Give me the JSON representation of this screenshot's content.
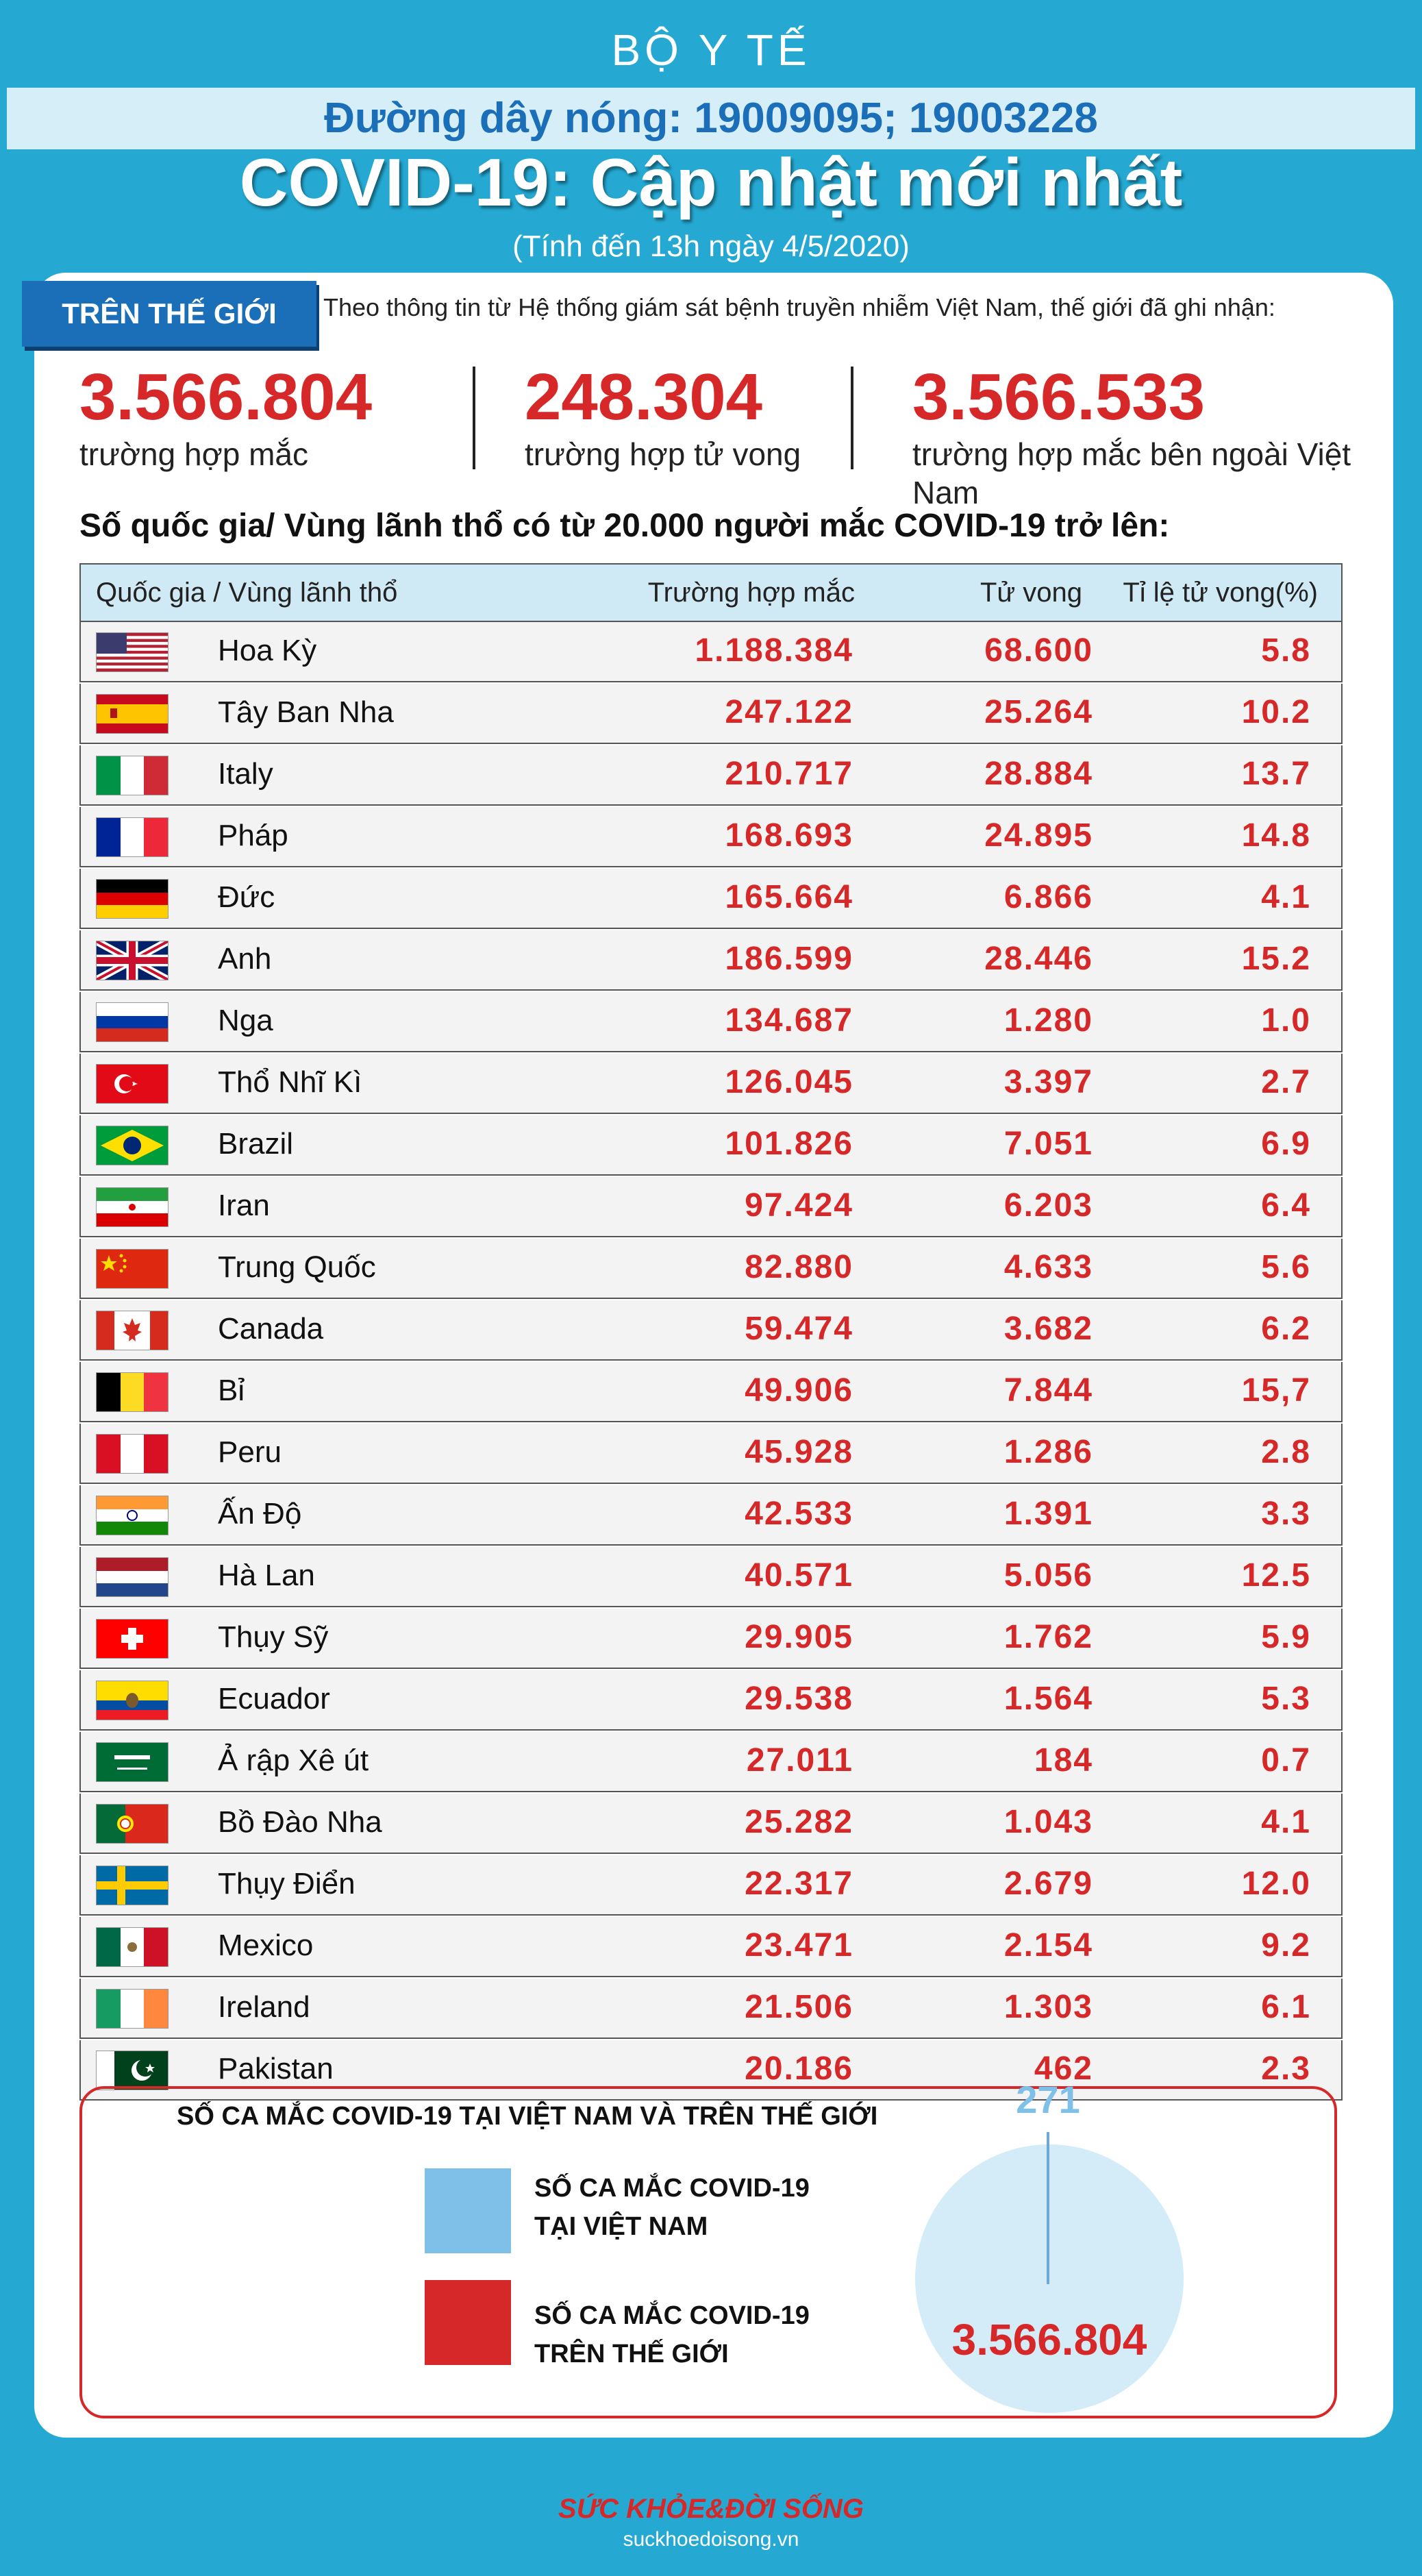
{
  "header": {
    "brand": "BỘ Y TẾ",
    "hotline": "Đường dây nóng: 19009095; 19003228",
    "title": "COVID-19: Cập nhật mới nhất",
    "subtitle": "(Tính đến 13h ngày 4/5/2020)"
  },
  "world": {
    "tab": "TRÊN THẾ GIỚI",
    "intro": "Theo thông tin từ Hệ thống giám sát bệnh truyền nhiễm Việt Nam, thế giới đã ghi nhận:",
    "stats": [
      {
        "value": "3.566.804",
        "label": "trường hợp mắc"
      },
      {
        "value": "248.304",
        "label": "trường hợp tử vong"
      },
      {
        "value": "3.566.533",
        "label": "trường hợp  mắc bên ngoài Việt Nam"
      }
    ]
  },
  "table": {
    "title": "Số quốc gia/ Vùng lãnh thổ có từ 20.000 người  mắc COVID-19 trở lên:",
    "headers": {
      "country": "Quốc gia / Vùng lãnh thổ",
      "cases": "Trường hợp mắc",
      "deaths": "Tử vong",
      "rate": "Tỉ lệ tử vong(%)"
    },
    "rows": [
      {
        "country": "Hoa Kỳ",
        "cases": "1.188.384",
        "deaths": "68.600",
        "rate": "5.8",
        "flag": "us-flag-icon"
      },
      {
        "country": "Tây Ban Nha",
        "cases": "247.122",
        "deaths": "25.264",
        "rate": "10.2",
        "flag": "spain-flag-icon"
      },
      {
        "country": "Italy",
        "cases": "210.717",
        "deaths": "28.884",
        "rate": "13.7",
        "flag": "italy-flag-icon"
      },
      {
        "country": "Pháp",
        "cases": "168.693",
        "deaths": "24.895",
        "rate": "14.8",
        "flag": "france-flag-icon"
      },
      {
        "country": "Đức",
        "cases": "165.664",
        "deaths": "6.866",
        "rate": "4.1",
        "flag": "germany-flag-icon"
      },
      {
        "country": "Anh",
        "cases": "186.599",
        "deaths": "28.446",
        "rate": "15.2",
        "flag": "uk-flag-icon"
      },
      {
        "country": "Nga",
        "cases": "134.687",
        "deaths": "1.280",
        "rate": "1.0",
        "flag": "russia-flag-icon"
      },
      {
        "country": "Thổ Nhĩ Kì",
        "cases": "126.045",
        "deaths": "3.397",
        "rate": "2.7",
        "flag": "turkey-flag-icon"
      },
      {
        "country": "Brazil",
        "cases": "101.826",
        "deaths": "7.051",
        "rate": "6.9",
        "flag": "brazil-flag-icon"
      },
      {
        "country": "Iran",
        "cases": "97.424",
        "deaths": "6.203",
        "rate": "6.4",
        "flag": "iran-flag-icon"
      },
      {
        "country": "Trung Quốc",
        "cases": "82.880",
        "deaths": "4.633",
        "rate": "5.6",
        "flag": "china-flag-icon"
      },
      {
        "country": "Canada",
        "cases": "59.474",
        "deaths": "3.682",
        "rate": "6.2",
        "flag": "canada-flag-icon"
      },
      {
        "country": "Bỉ",
        "cases": "49.906",
        "deaths": "7.844",
        "rate": "15,7",
        "flag": "belgium-flag-icon"
      },
      {
        "country": "Peru",
        "cases": "45.928",
        "deaths": "1.286",
        "rate": "2.8",
        "flag": "peru-flag-icon"
      },
      {
        "country": "Ấn Độ",
        "cases": "42.533",
        "deaths": "1.391",
        "rate": "3.3",
        "flag": "india-flag-icon"
      },
      {
        "country": "Hà Lan",
        "cases": "40.571",
        "deaths": "5.056",
        "rate": "12.5",
        "flag": "netherlands-flag-icon"
      },
      {
        "country": "Thụy Sỹ",
        "cases": "29.905",
        "deaths": "1.762",
        "rate": "5.9",
        "flag": "switzerland-flag-icon"
      },
      {
        "country": "Ecuador",
        "cases": "29.538",
        "deaths": "1.564",
        "rate": "5.3",
        "flag": "ecuador-flag-icon"
      },
      {
        "country": "Ả rập Xê út",
        "cases": "27.011",
        "deaths": "184",
        "rate": "0.7",
        "flag": "saudi-arabia-flag-icon"
      },
      {
        "country": "Bồ Đào Nha",
        "cases": "25.282",
        "deaths": "1.043",
        "rate": "4.1",
        "flag": "portugal-flag-icon"
      },
      {
        "country": "Thụy Điển",
        "cases": "22.317",
        "deaths": "2.679",
        "rate": "12.0",
        "flag": "sweden-flag-icon"
      },
      {
        "country": "Mexico",
        "cases": "23.471",
        "deaths": "2.154",
        "rate": "9.2",
        "flag": "mexico-flag-icon"
      },
      {
        "country": "Ireland",
        "cases": "21.506",
        "deaths": "1.303",
        "rate": "6.1",
        "flag": "ireland-flag-icon"
      },
      {
        "country": "Pakistan",
        "cases": "20.186",
        "deaths": "462",
        "rate": "2.3",
        "flag": "pakistan-flag-icon"
      }
    ]
  },
  "comparison": {
    "title": "SỐ CA MẮC COVID-19 TẠI VIỆT NAM VÀ TRÊN THẾ GIỚI",
    "vn_label_1": "SỐ CA MẮC COVID-19",
    "vn_label_2": "TẠI VIỆT NAM",
    "world_label_1": "SỐ CA MẮC COVID-19",
    "world_label_2": "TRÊN THẾ GIỚI",
    "vn_value": "271",
    "world_value": "3.566.804",
    "vn_color": "#7ec0e8",
    "world_color": "#d62828"
  },
  "footer": {
    "logo": "SỨC KHỎE&ĐỜI SỐNG",
    "url": "suckhoedoisong.vn"
  },
  "colors": {
    "background": "#25a9d3",
    "accent_red": "#d62828",
    "accent_blue": "#1b6fb8"
  }
}
